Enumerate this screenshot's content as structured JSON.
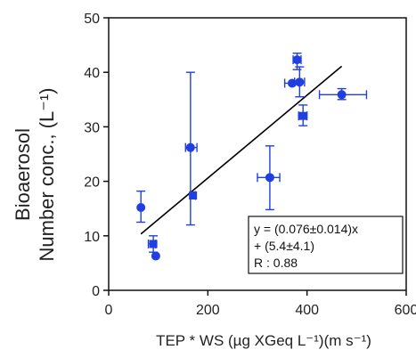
{
  "chart_data": {
    "type": "scatter",
    "xlabel": "TEP * WS (µg XGeq  L⁻¹)(m s⁻¹)",
    "ylabel_line1": "Bioaerosol",
    "ylabel_line2": "Number conc., (L⁻¹)",
    "xlim": [
      0,
      600
    ],
    "ylim": [
      0,
      50
    ],
    "xticks": [
      0,
      200,
      400,
      600
    ],
    "yticks": [
      0,
      10,
      20,
      30,
      40,
      50
    ],
    "grid": false,
    "colors": {
      "points": "#1f3fe0",
      "fit": "#000000"
    },
    "points": [
      {
        "x": 65,
        "y": 15.2,
        "shape": "circle",
        "yerr": [
          12.5,
          18.2
        ],
        "xerr": null
      },
      {
        "x": 90,
        "y": 8.5,
        "shape": "square",
        "yerr": [
          7.0,
          10.0
        ],
        "xerr": [
          80,
          95
        ]
      },
      {
        "x": 95,
        "y": 6.3,
        "shape": "circle",
        "yerr": null,
        "xerr": null
      },
      {
        "x": 165,
        "y": 26.2,
        "shape": "circle",
        "yerr": [
          12.0,
          40.0
        ],
        "xerr": [
          155,
          178
        ]
      },
      {
        "x": 170,
        "y": 17.4,
        "shape": "square",
        "yerr": null,
        "xerr": [
          165,
          175
        ]
      },
      {
        "x": 325,
        "y": 20.7,
        "shape": "circle",
        "yerr": [
          14.8,
          26.5
        ],
        "xerr": [
          300,
          345
        ]
      },
      {
        "x": 370,
        "y": 38.0,
        "shape": "circle",
        "yerr": null,
        "xerr": [
          355,
          385
        ]
      },
      {
        "x": 380,
        "y": 42.3,
        "shape": "circle",
        "yerr": [
          40.5,
          43.5
        ],
        "xerr": [
          372,
          388
        ]
      },
      {
        "x": 385,
        "y": 38.2,
        "shape": "circle",
        "yerr": [
          35.5,
          41.0
        ],
        "xerr": [
          375,
          395
        ]
      },
      {
        "x": 392,
        "y": 32.0,
        "shape": "square",
        "yerr": [
          30.2,
          34.0
        ],
        "xerr": [
          383,
          400
        ]
      },
      {
        "x": 470,
        "y": 35.9,
        "shape": "circle",
        "yerr": [
          35.0,
          37.0
        ],
        "xerr": [
          425,
          520
        ]
      }
    ],
    "fit_line": {
      "x": [
        65,
        470
      ],
      "y": [
        10.34,
        41.12
      ]
    },
    "annotation": {
      "line1": "y = (0.076±0.014)x",
      "line2": "+ (5.4±4.1)",
      "line3": "R : 0.88",
      "placement": "bottom-right"
    }
  }
}
